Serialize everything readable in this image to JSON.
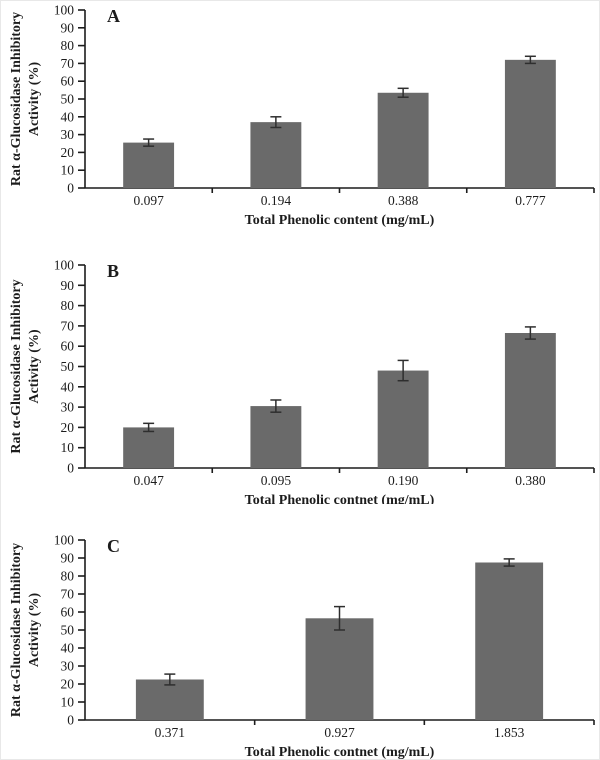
{
  "figure": {
    "ylabel_line1": "Rat α-Glucosidase Inhibitory",
    "ylabel_line2": "Activity (%)",
    "colors": {
      "bar": "#6a6a6a",
      "axis": "#1c1c1c",
      "error_bar": "#2e2e2e",
      "background": "#ffffff",
      "text": "#1c1c1c"
    }
  },
  "chart_data": [
    {
      "type": "bar",
      "panel_label": "A",
      "categories": [
        "0.097",
        "0.194",
        "0.388",
        "0.777"
      ],
      "values": [
        25.5,
        37,
        53.5,
        72
      ],
      "errors": [
        2,
        3,
        2.5,
        2
      ],
      "xlabel": "Total Phenolic content (mg/mL)",
      "ylabel": "Rat α-Glucosidase Inhibitory Activity (%)",
      "ylim": [
        0,
        100
      ],
      "yticks": [
        0,
        10,
        20,
        30,
        40,
        50,
        60,
        70,
        80,
        90,
        100
      ],
      "grid": false,
      "legend": null
    },
    {
      "type": "bar",
      "panel_label": "B",
      "categories": [
        "0.047",
        "0.095",
        "0.190",
        "0.380"
      ],
      "values": [
        20,
        30.5,
        48,
        66.5
      ],
      "errors": [
        2,
        3,
        5,
        3
      ],
      "xlabel": "Total Phenolic contnet (mg/mL)",
      "ylabel": "Rat α-Glucosidase Inhibitory Activity (%)",
      "ylim": [
        0,
        100
      ],
      "yticks": [
        0,
        10,
        20,
        30,
        40,
        50,
        60,
        70,
        80,
        90,
        100
      ],
      "grid": false,
      "legend": null
    },
    {
      "type": "bar",
      "panel_label": "C",
      "categories": [
        "0.371",
        "0.927",
        "1.853"
      ],
      "values": [
        22.5,
        56.5,
        87.5
      ],
      "errors": [
        3,
        6.5,
        2
      ],
      "xlabel": "Total Phenolic contnet (mg/mL)",
      "ylabel": "Rat α-Glucosidase Inhibitory Activity (%)",
      "ylim": [
        0,
        100
      ],
      "yticks": [
        0,
        10,
        20,
        30,
        40,
        50,
        60,
        70,
        80,
        90,
        100
      ],
      "grid": false,
      "legend": null
    }
  ]
}
